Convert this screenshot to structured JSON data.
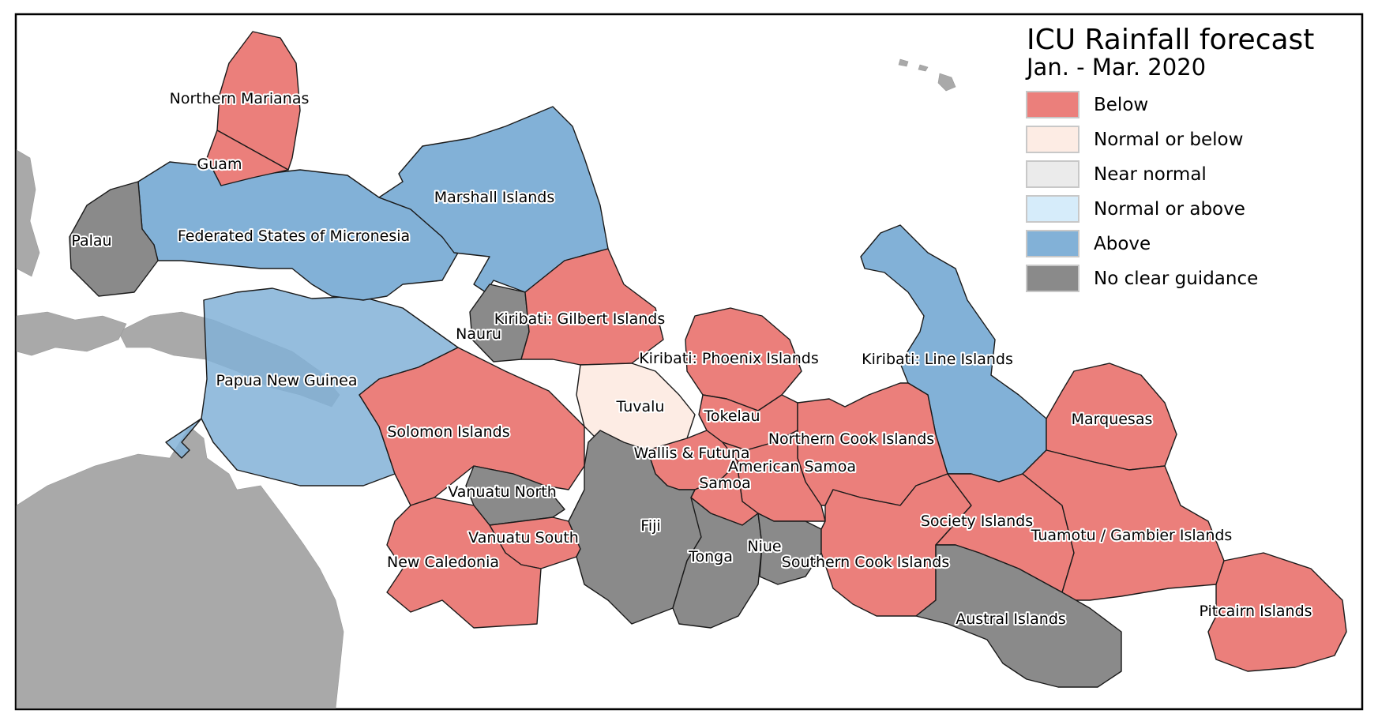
{
  "title": "ICU Rainfall forecast",
  "subtitle": "Jan. - Mar. 2020",
  "legend": [
    {
      "key": "below",
      "label": "Below",
      "color": "#eb7f7b"
    },
    {
      "key": "normal_or_below",
      "label": "Normal or below",
      "color": "#fdece4"
    },
    {
      "key": "near_normal",
      "label": "Near normal",
      "color": "#ebebeb"
    },
    {
      "key": "normal_or_above",
      "label": "Normal or above",
      "color": "#d6ecfa"
    },
    {
      "key": "above",
      "label": "Above",
      "color": "#82b1d7"
    },
    {
      "key": "no_guidance",
      "label": "No clear guidance",
      "color": "#8a8a8a"
    }
  ],
  "regions": [
    {
      "id": "northern-marianas",
      "name": "Northern Marianas",
      "category": "below"
    },
    {
      "id": "guam",
      "name": "Guam",
      "category": "below"
    },
    {
      "id": "palau",
      "name": "Palau",
      "category": "no_guidance"
    },
    {
      "id": "fsm",
      "name": "Federated States of Micronesia",
      "category": "above"
    },
    {
      "id": "marshall-islands",
      "name": "Marshall Islands",
      "category": "above"
    },
    {
      "id": "nauru",
      "name": "Nauru",
      "category": "no_guidance"
    },
    {
      "id": "kiribati-gilbert",
      "name": "Kiribati: Gilbert Islands",
      "category": "below"
    },
    {
      "id": "papua-new-guinea",
      "name": "Papua New Guinea",
      "category": "above"
    },
    {
      "id": "solomon-islands",
      "name": "Solomon Islands",
      "category": "below"
    },
    {
      "id": "tuvalu",
      "name": "Tuvalu",
      "category": "normal_or_below"
    },
    {
      "id": "kiribati-phoenix",
      "name": "Kiribati: Phoenix Islands",
      "category": "below"
    },
    {
      "id": "kiribati-line",
      "name": "Kiribati: Line Islands",
      "category": "above"
    },
    {
      "id": "tokelau",
      "name": "Tokelau",
      "category": "below"
    },
    {
      "id": "northern-cook",
      "name": "Northern Cook Islands",
      "category": "below"
    },
    {
      "id": "marquesas",
      "name": "Marquesas",
      "category": "below"
    },
    {
      "id": "wallis-futuna",
      "name": "Wallis & Futuna",
      "category": "below"
    },
    {
      "id": "american-samoa",
      "name": "American Samoa",
      "category": "below"
    },
    {
      "id": "samoa",
      "name": "Samoa",
      "category": "below"
    },
    {
      "id": "vanuatu-north",
      "name": "Vanuatu North",
      "category": "no_guidance"
    },
    {
      "id": "vanuatu-south",
      "name": "Vanuatu South",
      "category": "below"
    },
    {
      "id": "new-caledonia",
      "name": "New Caledonia",
      "category": "below"
    },
    {
      "id": "fiji",
      "name": "Fiji",
      "category": "no_guidance"
    },
    {
      "id": "tonga",
      "name": "Tonga",
      "category": "no_guidance"
    },
    {
      "id": "niue",
      "name": "Niue",
      "category": "no_guidance"
    },
    {
      "id": "southern-cook",
      "name": "Southern Cook Islands",
      "category": "below"
    },
    {
      "id": "society-islands",
      "name": "Society Islands",
      "category": "below"
    },
    {
      "id": "tuamotu-gambier",
      "name": "Tuamotu / Gambier Islands",
      "category": "below"
    },
    {
      "id": "austral-islands",
      "name": "Austral Islands",
      "category": "no_guidance"
    },
    {
      "id": "pitcairn-islands",
      "name": "Pitcairn Islands",
      "category": "below"
    }
  ]
}
